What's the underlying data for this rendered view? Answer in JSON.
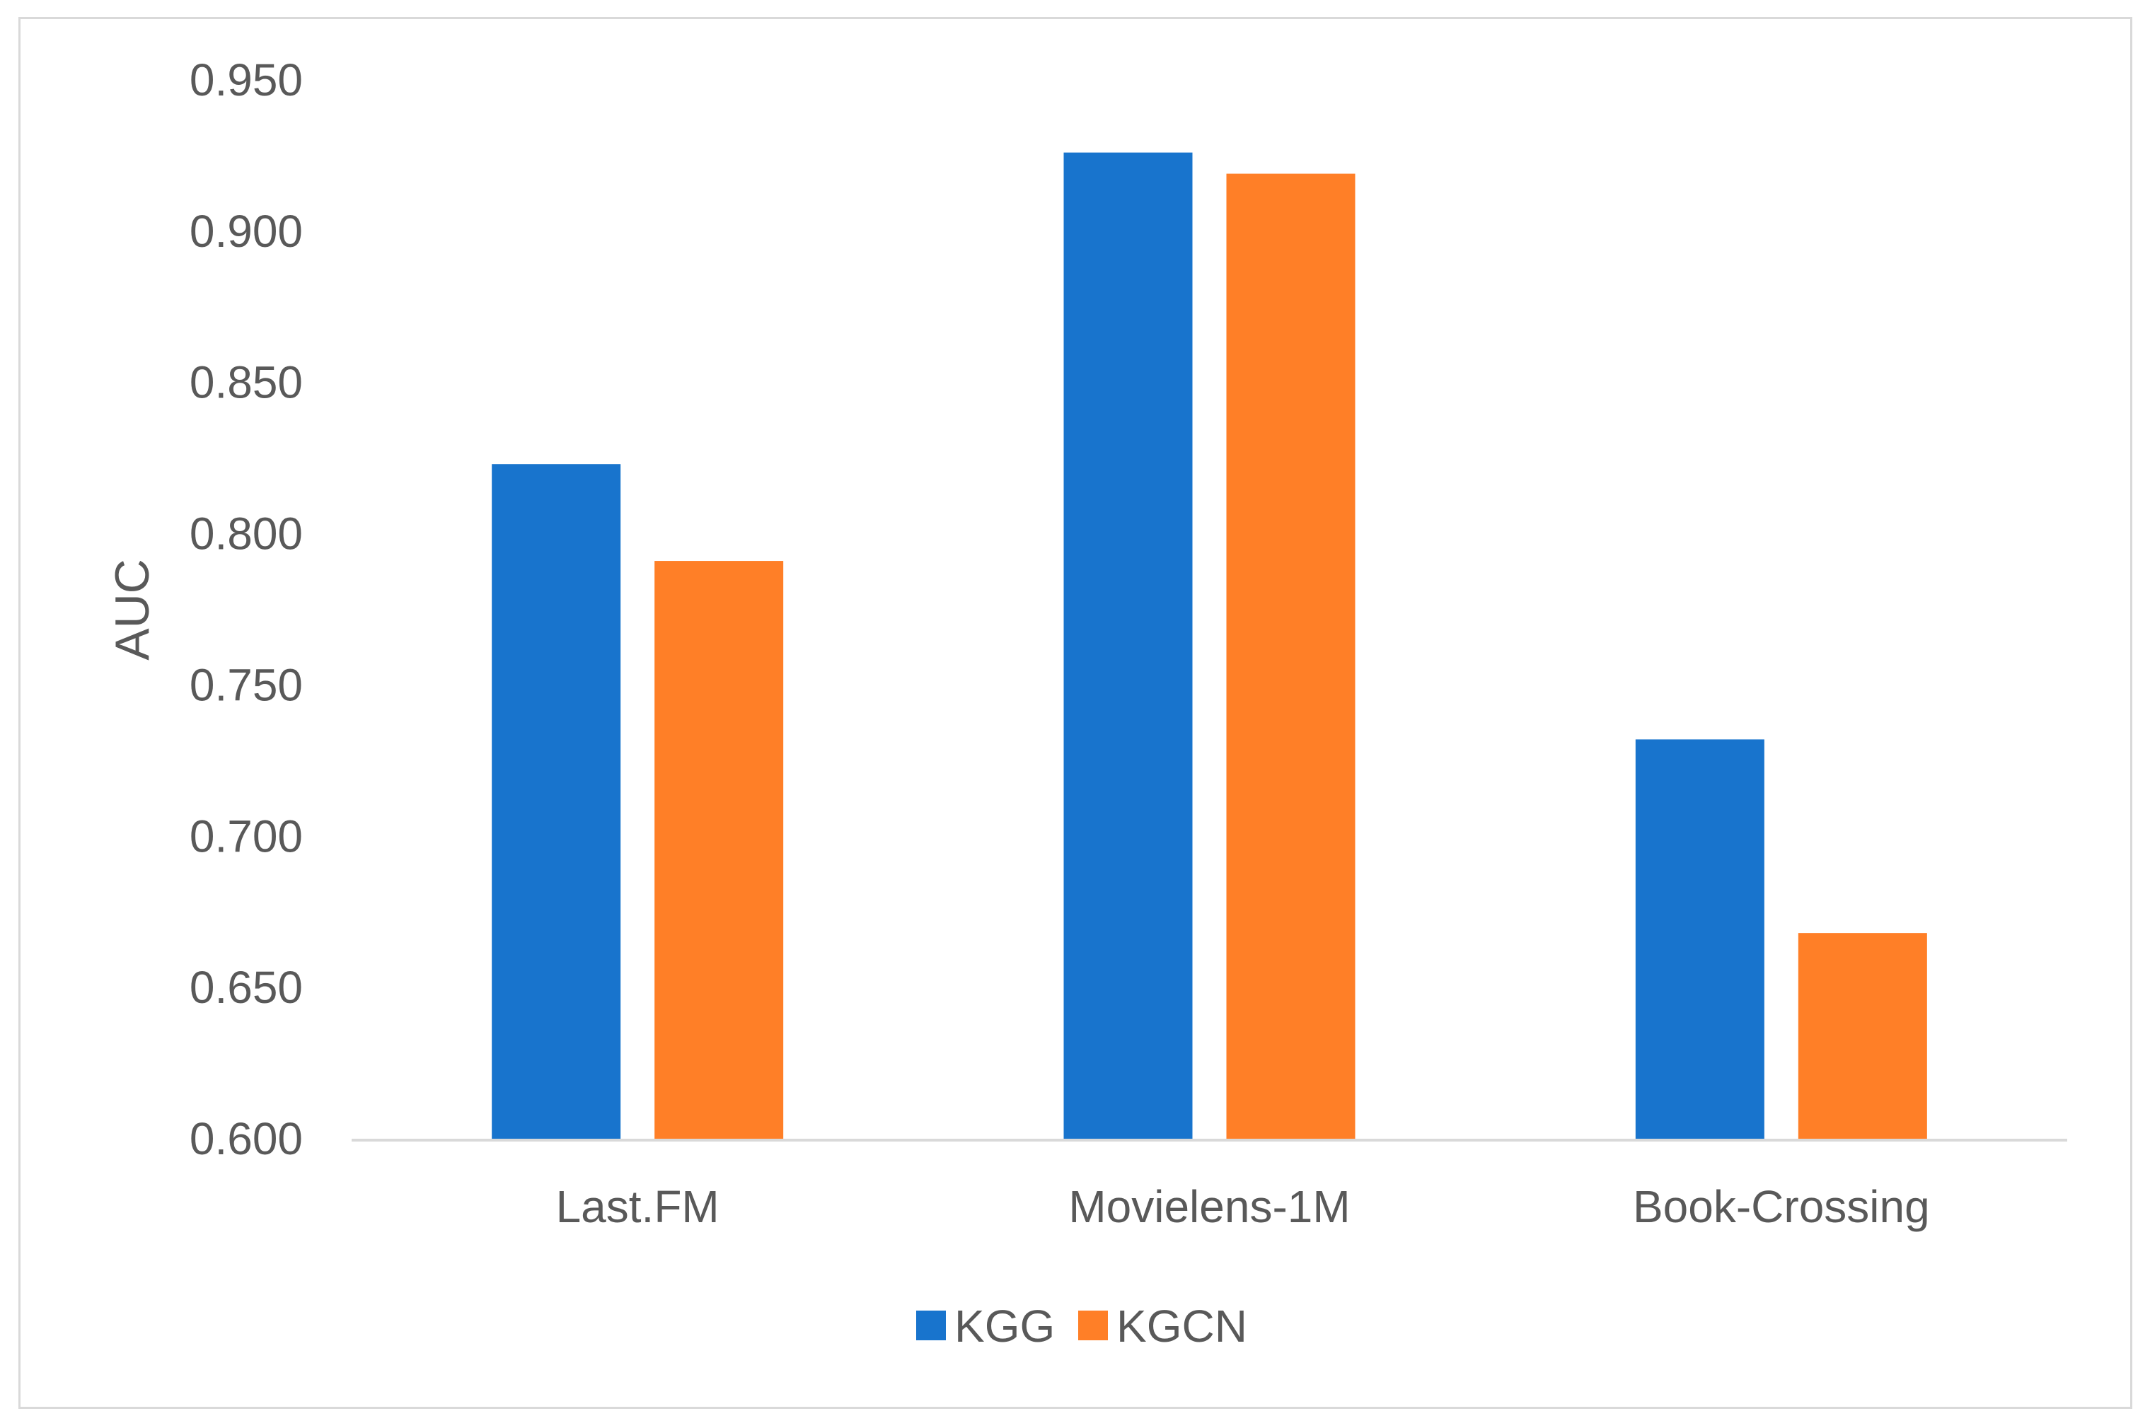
{
  "chart_data": {
    "type": "bar",
    "categories": [
      "Last.FM",
      "Movielens-1M",
      "Book-Crossing"
    ],
    "series": [
      {
        "name": "KGG",
        "values": [
          0.823,
          0.926,
          0.732
        ],
        "color": "#1874CD"
      },
      {
        "name": "KGCN",
        "values": [
          0.791,
          0.919,
          0.668
        ],
        "color": "#FF7F27"
      }
    ],
    "ylabel": "AUC",
    "ylim": [
      0.6,
      0.95
    ],
    "yticks": [
      "0.600",
      "0.650",
      "0.700",
      "0.750",
      "0.800",
      "0.850",
      "0.900",
      "0.950"
    ],
    "grid": false,
    "legend": "bottom-center"
  }
}
